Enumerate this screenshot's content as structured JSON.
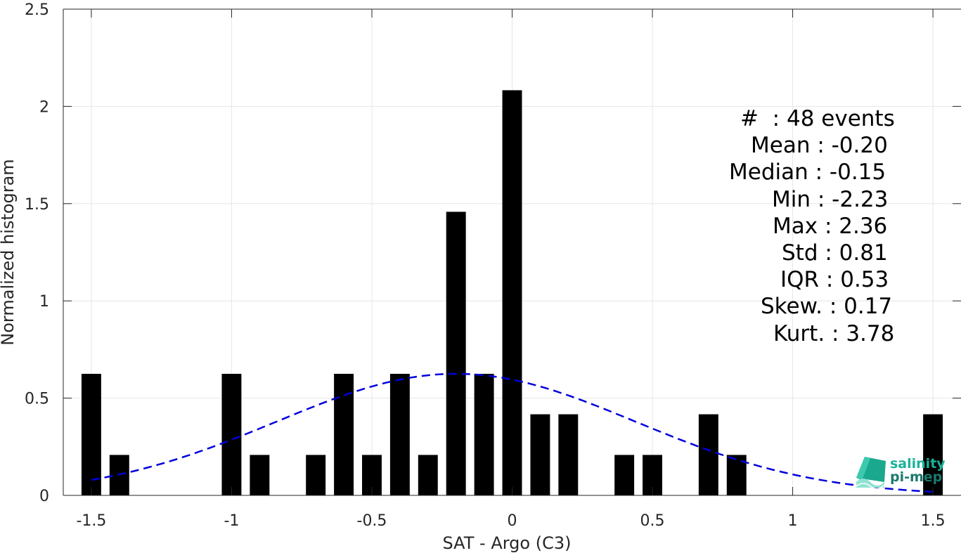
{
  "chart_data": {
    "type": "bar",
    "xlabel": "SAT - Argo (C3)",
    "ylabel": "Normalized histogram",
    "xlim": [
      -1.6,
      1.6
    ],
    "ylim": [
      0,
      2.5
    ],
    "grid": true,
    "xticks": [
      -1.5,
      -1,
      -0.5,
      0,
      0.5,
      1,
      1.5
    ],
    "xtick_labels": [
      "-1.5",
      "-1",
      "-0.5",
      "0",
      "0.5",
      "1",
      "1.5"
    ],
    "yticks": [
      0,
      0.5,
      1,
      1.5,
      2,
      2.5
    ],
    "ytick_labels": [
      "0",
      "0.5",
      "1",
      "1.5",
      "2",
      "2.5"
    ],
    "bar_width": 0.07,
    "bars": [
      {
        "x": -1.5,
        "value": 0.625
      },
      {
        "x": -1.4,
        "value": 0.208
      },
      {
        "x": -1.0,
        "value": 0.625
      },
      {
        "x": -0.9,
        "value": 0.208
      },
      {
        "x": -0.7,
        "value": 0.208
      },
      {
        "x": -0.6,
        "value": 0.625
      },
      {
        "x": -0.5,
        "value": 0.208
      },
      {
        "x": -0.4,
        "value": 0.625
      },
      {
        "x": -0.3,
        "value": 0.208
      },
      {
        "x": -0.2,
        "value": 1.458
      },
      {
        "x": -0.1,
        "value": 0.625
      },
      {
        "x": 0.0,
        "value": 2.083
      },
      {
        "x": 0.1,
        "value": 0.417
      },
      {
        "x": 0.2,
        "value": 0.417
      },
      {
        "x": 0.4,
        "value": 0.208
      },
      {
        "x": 0.5,
        "value": 0.208
      },
      {
        "x": 0.7,
        "value": 0.417
      },
      {
        "x": 0.8,
        "value": 0.208
      },
      {
        "x": 1.5,
        "value": 0.417
      }
    ],
    "fit_curve": {
      "style": "dashed",
      "color": "#0000dd",
      "mean": -0.2,
      "std": 0.64,
      "peak": 0.625,
      "x_range": [
        -1.5,
        1.5
      ]
    },
    "bar_color": "#000000"
  },
  "stats_lines": [
    "#  : 48 events",
    "Mean : -0.20",
    "Median : -0.15",
    "Min : -2.23",
    "Max : 2.36",
    "Std : 0.81",
    "IQR : 0.53",
    "Skew. : 0.17",
    "Kurt. : 3.78"
  ],
  "logo": {
    "line1": "salinity",
    "line2": "pi-mep",
    "color1": "#19b39a",
    "color2": "#1a7a6e"
  }
}
